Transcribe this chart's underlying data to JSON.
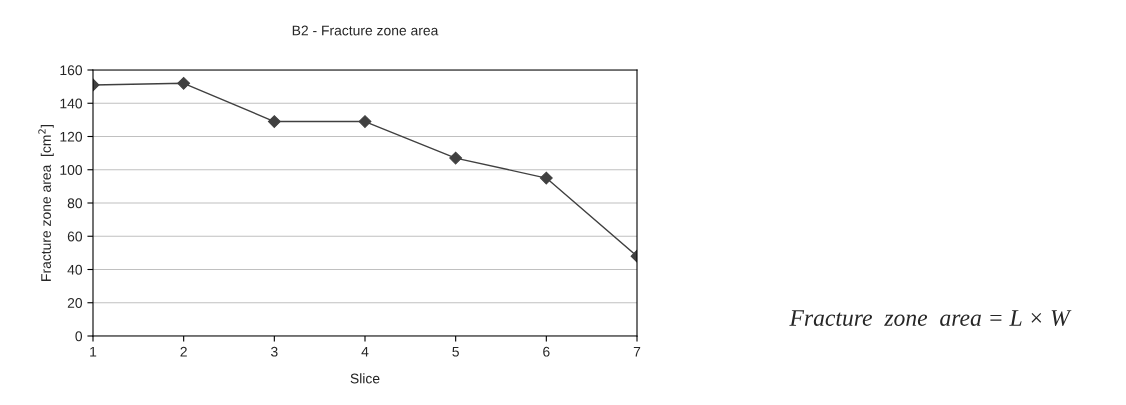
{
  "chart_data": {
    "type": "line",
    "title": "B2 - Fracture zone area",
    "xlabel": "Slice",
    "ylabel": "Fracture zone area  [cm$^{2}$]",
    "x": [
      1,
      2,
      3,
      4,
      5,
      6,
      7
    ],
    "series": [
      {
        "color": "#404040",
        "values": [
          151,
          152,
          129,
          129,
          107,
          95,
          48
        ]
      }
    ],
    "xlim": [
      1,
      7
    ],
    "xticks": [
      1,
      2,
      3,
      4,
      5,
      6,
      7
    ],
    "ylim": [
      0,
      160
    ],
    "yticks": [
      0,
      20,
      40,
      60,
      80,
      100,
      120,
      140,
      160
    ],
    "grid": "y",
    "marker": "diamond",
    "line_style": "solid",
    "annotations": [
      "Fracture  zone  area = L × W"
    ]
  }
}
